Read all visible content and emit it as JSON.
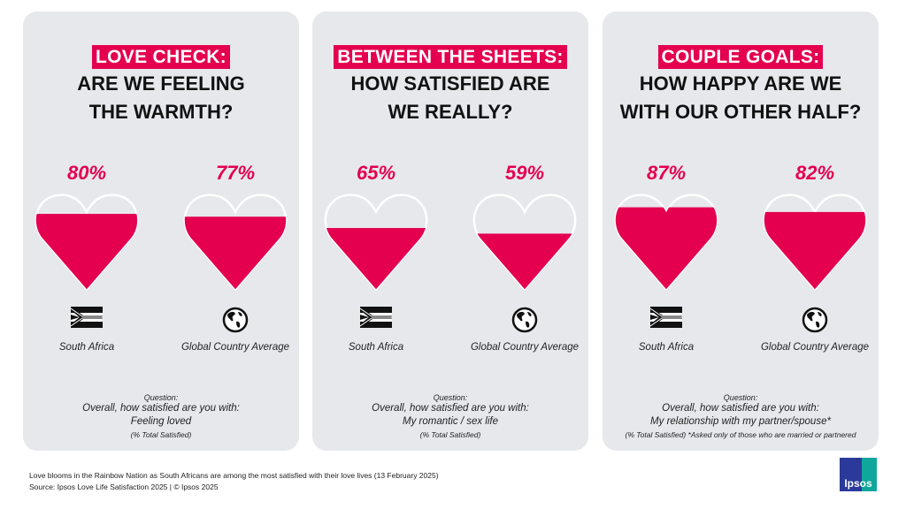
{
  "colors": {
    "accent": "#e4004f",
    "panel": "#e6e8ec"
  },
  "panels": [
    {
      "tag": "LOVE CHECK:",
      "line1": "ARE WE FEELING",
      "line2": "THE WARMTH?",
      "items": [
        {
          "value": "80%",
          "fill": 80,
          "label": "South Africa",
          "icon": "south-africa-flag-icon"
        },
        {
          "value": "77%",
          "fill": 77,
          "label": "Global Country Average",
          "icon": "globe-icon"
        }
      ],
      "question": {
        "heading": "Question:",
        "line1": "Overall, how satisfied are you with:",
        "line2": "Feeling loved",
        "note": "(% Total Satisfied)"
      }
    },
    {
      "tag": "BETWEEN THE SHEETS:",
      "line1": "HOW SATISFIED ARE",
      "line2": "WE REALLY?",
      "items": [
        {
          "value": "65%",
          "fill": 65,
          "label": "South Africa",
          "icon": "south-africa-flag-icon"
        },
        {
          "value": "59%",
          "fill": 59,
          "label": "Global Country Average",
          "icon": "globe-icon"
        }
      ],
      "question": {
        "heading": "Question:",
        "line1": "Overall, how satisfied are you with:",
        "line2": "My romantic / sex life",
        "note": "(% Total Satisfied)"
      }
    },
    {
      "tag": "COUPLE GOALS:",
      "line1": "HOW HAPPY ARE WE",
      "line2": "WITH OUR OTHER HALF?",
      "items": [
        {
          "value": "87%",
          "fill": 87,
          "label": "South Africa",
          "icon": "south-africa-flag-icon"
        },
        {
          "value": "82%",
          "fill": 82,
          "label": "Global Country Average",
          "icon": "globe-icon"
        }
      ],
      "question": {
        "heading": "Question:",
        "line1": "Overall, how satisfied are you with:",
        "line2": "My relationship with my partner/spouse*",
        "note": "(% Total Satisfied) *Asked only of those who are married or partnered"
      }
    }
  ],
  "footer": {
    "caption": "Love blooms in the Rainbow Nation as South Africans are among the most satisfied with their love lives (13 February 2025)",
    "source": "Source: Ipsos Love Life Satisfaction 2025 | © Ipsos 2025",
    "logo": "Ipsos"
  }
}
